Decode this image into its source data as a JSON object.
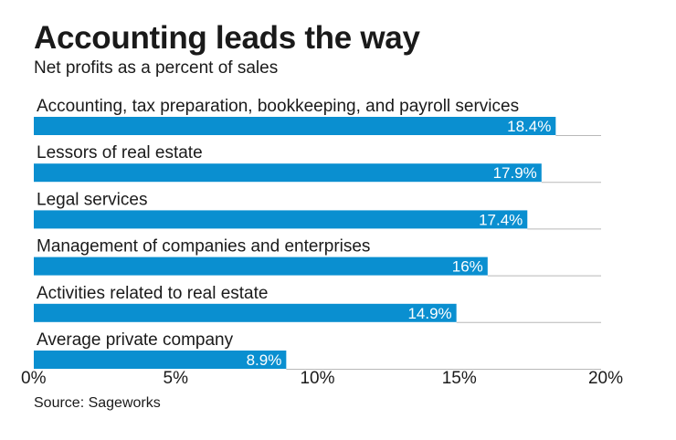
{
  "title": "Accounting leads the way",
  "subtitle": "Net profits as a percent of sales",
  "source": "Source: Sageworks",
  "bar_color": "#0a8fd0",
  "chart_data": {
    "type": "bar",
    "orientation": "horizontal",
    "categories": [
      "Accounting, tax preparation, bookkeeping, and payroll services",
      "Lessors of real estate",
      "Legal services",
      "Management of companies and enterprises",
      "Activities related to real estate",
      "Average private company"
    ],
    "values": [
      18.4,
      17.9,
      17.4,
      16,
      14.9,
      8.9
    ],
    "value_labels": [
      "18.4%",
      "17.9%",
      "17.4%",
      "16%",
      "14.9%",
      "8.9%"
    ],
    "xlim": [
      0,
      20
    ],
    "xticks": [
      0,
      5,
      10,
      15,
      20
    ],
    "xtick_labels": [
      "0%",
      "5%",
      "10%",
      "15%",
      "20%"
    ],
    "grid": false
  }
}
